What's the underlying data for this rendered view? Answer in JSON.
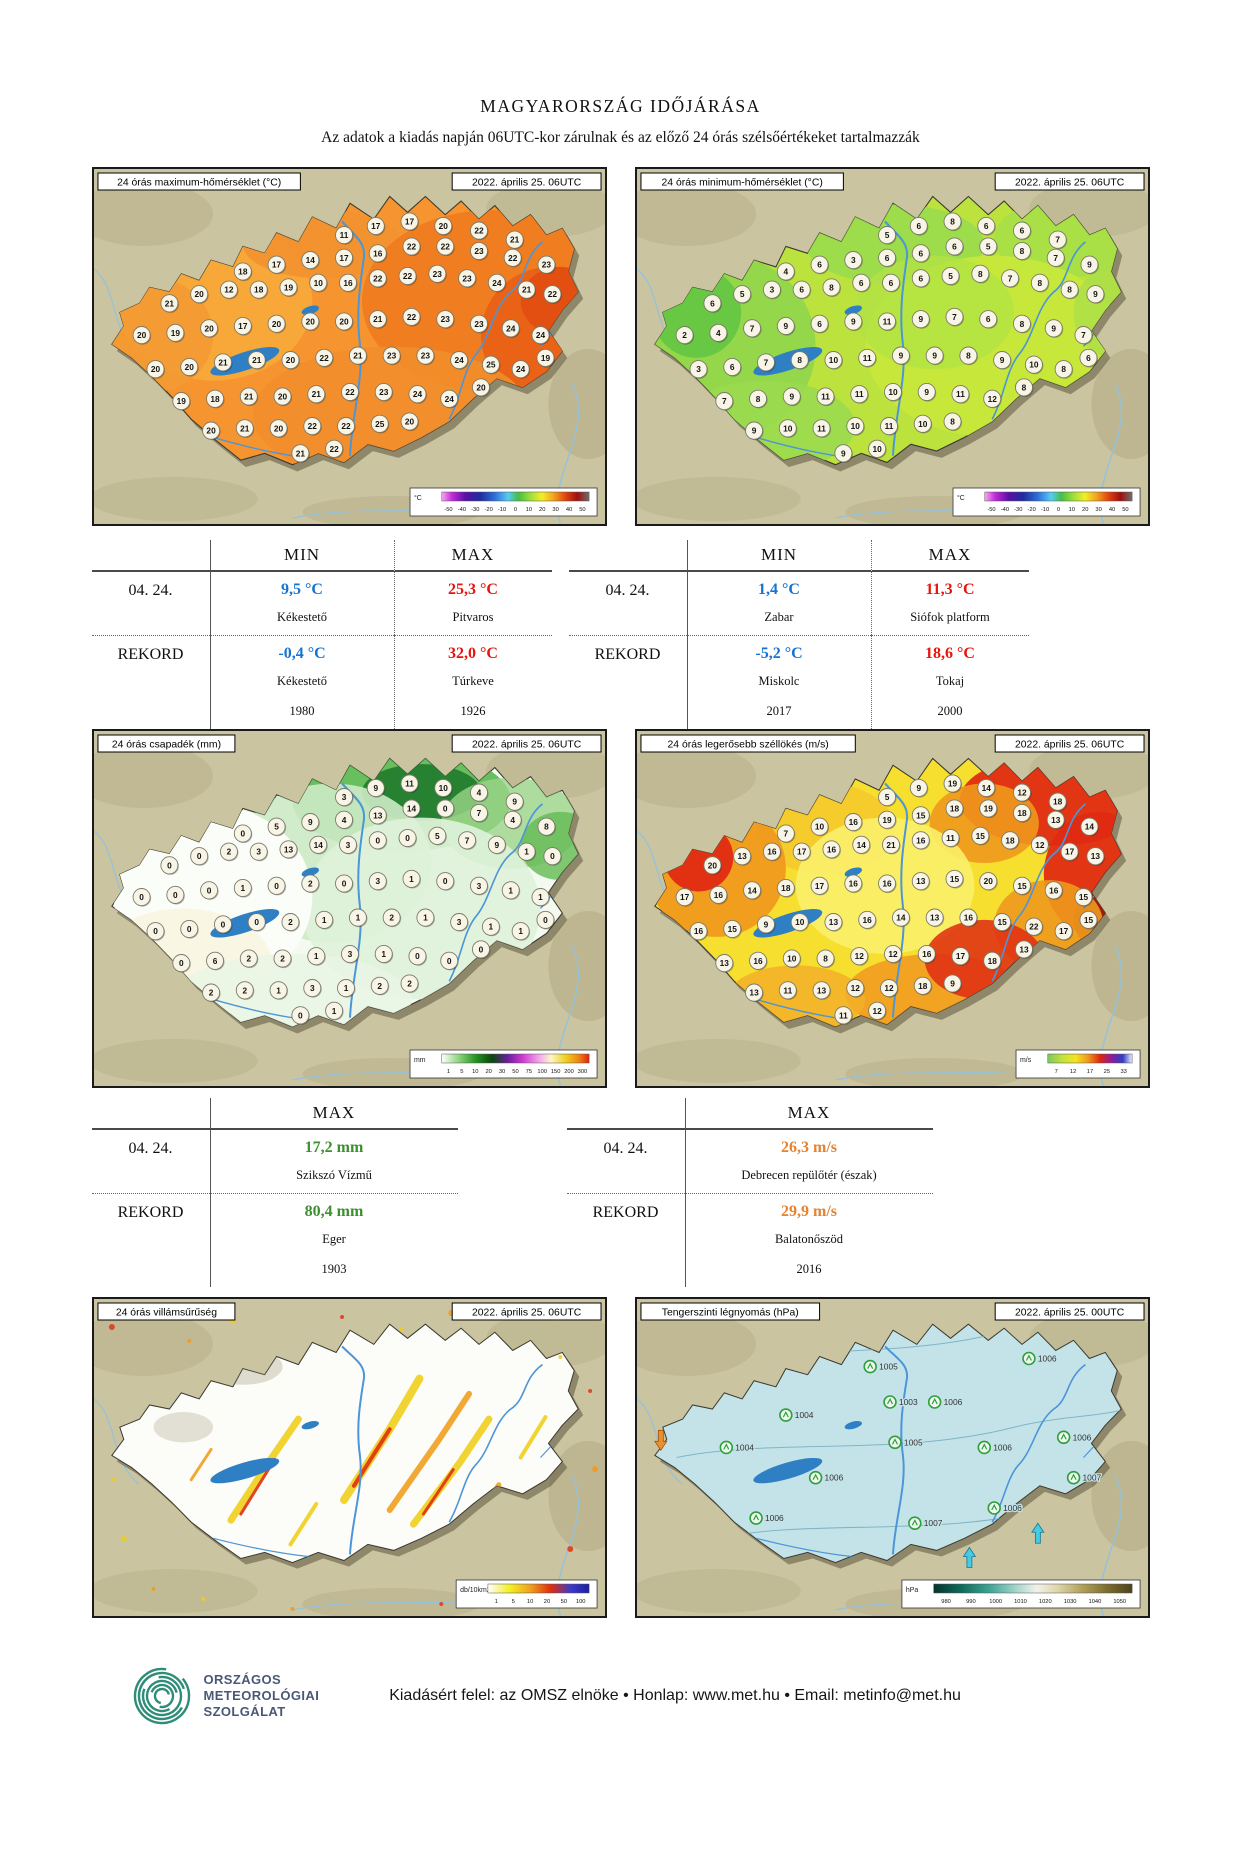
{
  "page": {
    "title": "MAGYARORSZÁG IDŐJÁRÁSA",
    "subtitle": "Az adatok a kiadás napján 06UTC-kor zárulnak és az előző 24 órás szélsőértékeket tartalmazzák"
  },
  "maps": [
    {
      "style": "maxtemp",
      "title": "24 órás maximum-hőmérséklet (°C)",
      "timestamp": "2022. április 25. 06UTC",
      "legend_unit": "°C",
      "legend_ticks": [
        "-50",
        "-40",
        "-30",
        "-20",
        "-10",
        "0",
        "10",
        "20",
        "30",
        "40",
        "50"
      ],
      "station_values": [
        11,
        17,
        17,
        20,
        22,
        21,
        18,
        17,
        14,
        17,
        16,
        22,
        22,
        23,
        22,
        23,
        21,
        20,
        12,
        18,
        19,
        10,
        16,
        22,
        22,
        23,
        23,
        24,
        21,
        22,
        20,
        19,
        20,
        17,
        20,
        20,
        20,
        21,
        22,
        23,
        23,
        24,
        24,
        20,
        20,
        21,
        21,
        20,
        22,
        21,
        23,
        23,
        24,
        25,
        24,
        19,
        19,
        18,
        21,
        20,
        21,
        22,
        23,
        24,
        24,
        20,
        20,
        21,
        20,
        22,
        22,
        25,
        20,
        21,
        22
      ]
    },
    {
      "style": "mintemp",
      "title": "24 órás minimum-hőmérséklet (°C)",
      "timestamp": "2022. április 25. 06UTC",
      "legend_unit": "°C",
      "legend_ticks": [
        "-50",
        "-40",
        "-30",
        "-20",
        "-10",
        "0",
        "10",
        "20",
        "30",
        "40",
        "50"
      ],
      "station_values": [
        5,
        6,
        8,
        6,
        6,
        7,
        4,
        6,
        3,
        6,
        6,
        6,
        5,
        8,
        7,
        9,
        6,
        5,
        3,
        6,
        8,
        6,
        6,
        6,
        5,
        8,
        7,
        8,
        8,
        9,
        2,
        4,
        7,
        9,
        6,
        9,
        11,
        9,
        7,
        6,
        8,
        9,
        7,
        3,
        6,
        7,
        8,
        10,
        11,
        9,
        9,
        8,
        9,
        10,
        8,
        6,
        7,
        8,
        9,
        11,
        11,
        10,
        9,
        11,
        12,
        8,
        9,
        10,
        11,
        10,
        11,
        10,
        8,
        9,
        10
      ]
    },
    {
      "style": "precip",
      "title": "24 órás csapadék (mm)",
      "timestamp": "2022. április 25. 06UTC",
      "legend_unit": "mm",
      "legend_ticks": [
        "1",
        "5",
        "10",
        "20",
        "30",
        "50",
        "75",
        "100",
        "150",
        "200",
        "300"
      ],
      "station_values": [
        3,
        9,
        11,
        10,
        4,
        9,
        0,
        5,
        9,
        4,
        13,
        14,
        0,
        7,
        4,
        8,
        0,
        0,
        2,
        3,
        13,
        14,
        3,
        0,
        0,
        5,
        7,
        9,
        1,
        0,
        0,
        0,
        0,
        1,
        0,
        2,
        0,
        3,
        1,
        0,
        3,
        1,
        1,
        0,
        0,
        0,
        0,
        2,
        1,
        1,
        2,
        1,
        3,
        1,
        1,
        0,
        0,
        6,
        2,
        2,
        1,
        3,
        1,
        0,
        0,
        0,
        2,
        2,
        1,
        3,
        1,
        2,
        2,
        0,
        1
      ]
    },
    {
      "style": "wind",
      "title": "24 órás legerősebb széllökés (m/s)",
      "timestamp": "2022. április 25. 06UTC",
      "legend_unit": "m/s",
      "legend_ticks": [
        "7",
        "12",
        "17",
        "25",
        "33"
      ],
      "station_values": [
        5,
        9,
        19,
        14,
        12,
        18,
        7,
        10,
        16,
        19,
        15,
        18,
        19,
        18,
        13,
        14,
        20,
        13,
        16,
        17,
        16,
        14,
        21,
        16,
        11,
        15,
        18,
        12,
        17,
        13,
        17,
        16,
        14,
        18,
        17,
        16,
        16,
        13,
        15,
        20,
        15,
        16,
        15,
        16,
        15,
        9,
        10,
        13,
        16,
        14,
        13,
        16,
        15,
        22,
        17,
        15,
        13,
        16,
        10,
        8,
        12,
        12,
        16,
        17,
        18,
        13,
        13,
        11,
        13,
        12,
        12,
        18,
        9,
        11,
        12
      ]
    },
    {
      "style": "lightning",
      "title": "24 órás villámsűrűség",
      "timestamp": "2022. április 25. 06UTC",
      "legend_unit": "db/10km2",
      "legend_ticks": [
        "1",
        "5",
        "10",
        "20",
        "50",
        "100"
      ]
    },
    {
      "style": "pressure",
      "title": "Tengerszinti légnyomás (hPa)",
      "timestamp": "2022. április 25. 00UTC",
      "legend_unit": "hPa",
      "legend_ticks": [
        "980",
        "990",
        "1000",
        "1010",
        "1020",
        "1030",
        "1040",
        "1050"
      ],
      "pressure_stations": [
        "1005",
        "1006",
        "1006",
        "1004",
        "1003",
        "1004",
        "1005",
        "1006",
        "1006",
        "1007",
        "1006",
        "1006",
        "1007",
        "1006"
      ]
    }
  ],
  "tables": [
    {
      "columns": [
        "MIN",
        "MAX"
      ],
      "rows": [
        {
          "label": "04. 24.",
          "cells": [
            {
              "value": "9,5 °C",
              "station": "Kékestető",
              "color": "blue"
            },
            {
              "value": "25,3 °C",
              "station": "Pitvaros",
              "color": "red"
            }
          ]
        },
        {
          "label": "REKORD",
          "cells": [
            {
              "value": "-0,4 °C",
              "station": "Kékestető",
              "year": "1980",
              "color": "blue"
            },
            {
              "value": "32,0 °C",
              "station": "Túrkeve",
              "year": "1926",
              "color": "red"
            }
          ]
        }
      ]
    },
    {
      "columns": [
        "MIN",
        "MAX"
      ],
      "rows": [
        {
          "label": "04. 24.",
          "cells": [
            {
              "value": "1,4 °C",
              "station": "Zabar",
              "color": "blue"
            },
            {
              "value": "11,3 °C",
              "station": "Siófok platform",
              "color": "red"
            }
          ]
        },
        {
          "label": "REKORD",
          "cells": [
            {
              "value": "-5,2 °C",
              "station": "Miskolc",
              "year": "2017",
              "color": "blue"
            },
            {
              "value": "18,6 °C",
              "station": "Tokaj",
              "year": "2000",
              "color": "red"
            }
          ]
        }
      ]
    },
    {
      "columns": [
        "MAX"
      ],
      "rows": [
        {
          "label": "04. 24.",
          "cells": [
            {
              "value": "17,2 mm",
              "station": "Szikszó Vízmű",
              "color": "green"
            }
          ]
        },
        {
          "label": "REKORD",
          "cells": [
            {
              "value": "80,4 mm",
              "station": "Eger",
              "year": "1903",
              "color": "green"
            }
          ]
        }
      ]
    },
    {
      "columns": [
        "MAX"
      ],
      "rows": [
        {
          "label": "04. 24.",
          "cells": [
            {
              "value": "26,3 m/s",
              "station": "Debrecen repülőtér (észak)",
              "color": "orange"
            }
          ]
        },
        {
          "label": "REKORD",
          "cells": [
            {
              "value": "29,9 m/s",
              "station": "Balatonőszöd",
              "year": "2016",
              "color": "orange"
            }
          ]
        }
      ]
    }
  ],
  "footer": {
    "logo_lines": [
      "ORSZÁGOS",
      "METEOROLÓGIAI",
      "SZOLGÁLAT"
    ],
    "credit": "Kiadásért felel: az OMSZ elnöke • Honlap: www.met.hu • Email: metinfo@met.hu"
  },
  "colors": {
    "min_value": "#1673D1",
    "max_value": "#E8150D",
    "precip_value": "#3E8F2F",
    "wind_value": "#E8822D",
    "logo_teal": "#2E8C78",
    "logo_navy": "#4A5878"
  }
}
